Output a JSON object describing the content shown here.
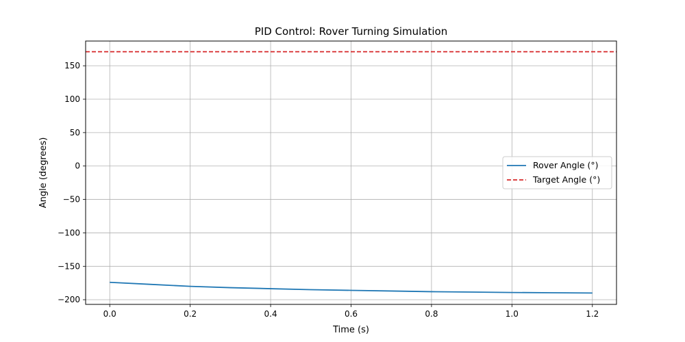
{
  "chart_data": {
    "type": "line",
    "title": "PID Control: Rover Turning Simulation",
    "xlabel": "Time (s)",
    "ylabel": "Angle (degrees)",
    "xlim": [
      -0.06,
      1.26
    ],
    "ylim": [
      -207,
      187
    ],
    "xticks": [
      0.0,
      0.2,
      0.4,
      0.6,
      0.8,
      1.0,
      1.2
    ],
    "xtick_labels": [
      "0.0",
      "0.2",
      "0.4",
      "0.6",
      "0.8",
      "1.0",
      "1.2"
    ],
    "yticks": [
      -200,
      -150,
      -100,
      -50,
      0,
      50,
      100,
      150
    ],
    "ytick_labels": [
      "−200",
      "−150",
      "−100",
      "−50",
      "0",
      "50",
      "100",
      "150"
    ],
    "grid": true,
    "legend_position": "center-right",
    "series": [
      {
        "name": "Rover Angle (°)",
        "color": "#1f77b4",
        "style": "solid",
        "x": [
          0.0,
          0.1,
          0.2,
          0.3,
          0.4,
          0.5,
          0.6,
          0.7,
          0.8,
          0.9,
          1.0,
          1.1,
          1.2
        ],
        "y": [
          -174,
          -177,
          -180,
          -182,
          -183.5,
          -185,
          -186,
          -187,
          -188,
          -188.6,
          -189.2,
          -189.6,
          -190
        ]
      },
      {
        "name": "Target Angle (°)",
        "color": "#d62728",
        "style": "dashed",
        "x": [
          -0.06,
          1.26
        ],
        "y": [
          171,
          171
        ]
      }
    ]
  }
}
